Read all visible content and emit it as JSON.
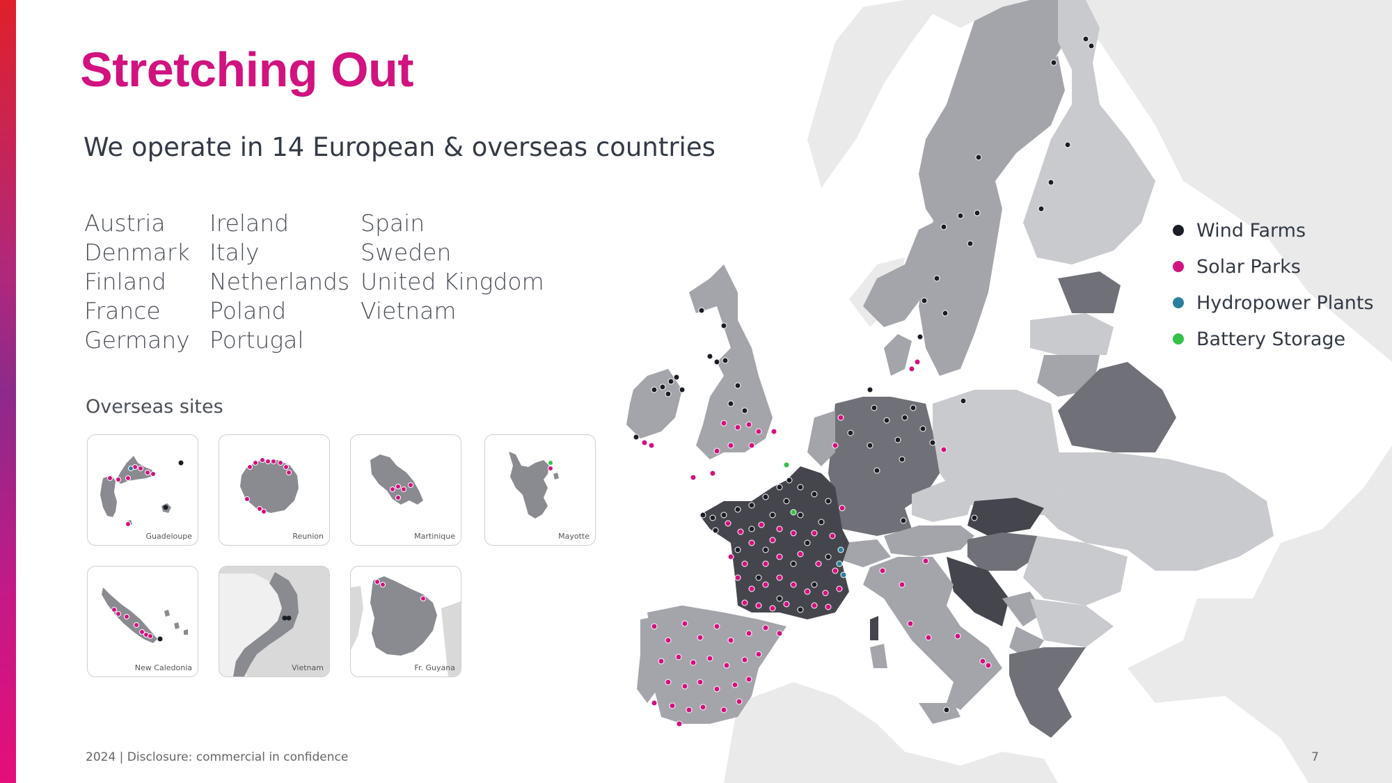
{
  "slide": {
    "title": "Stretching Out",
    "subtitle": "We operate in 14 European & overseas countries",
    "countries_col1": [
      "Austria",
      "Denmark",
      "Finland",
      "France",
      "Germany"
    ],
    "countries_col2": [
      "Ireland",
      "Italy",
      "Netherlands",
      "Poland",
      "Portugal"
    ],
    "countries_col3": [
      "Spain",
      "Sweden",
      "United Kingdom",
      "Vietnam"
    ],
    "overseas_label": "Overseas sites",
    "overseas_sites": [
      "Guadeloupe",
      "Reunion",
      "Martinique",
      "Mayotte",
      "New Caledonia",
      "Vietnam",
      "Fr. Guyana"
    ],
    "footer": "2024 | Disclosure: commercial in confidence",
    "page_number": "7"
  },
  "legend": [
    {
      "label": "Wind Farms",
      "color": "#1a1d26"
    },
    {
      "label": "Solar Parks",
      "color": "#d1127f"
    },
    {
      "label": "Hydropower Plants",
      "color": "#2b7f9e"
    },
    {
      "label": "Battery Storage",
      "color": "#34c24a"
    }
  ],
  "colors": {
    "accent": "#d1127f",
    "country_dark": "#45464d",
    "country_mid": "#707178",
    "country_light": "#a4a5ab",
    "country_pale": "#c9cacd",
    "background_land": "#eaeaea"
  }
}
